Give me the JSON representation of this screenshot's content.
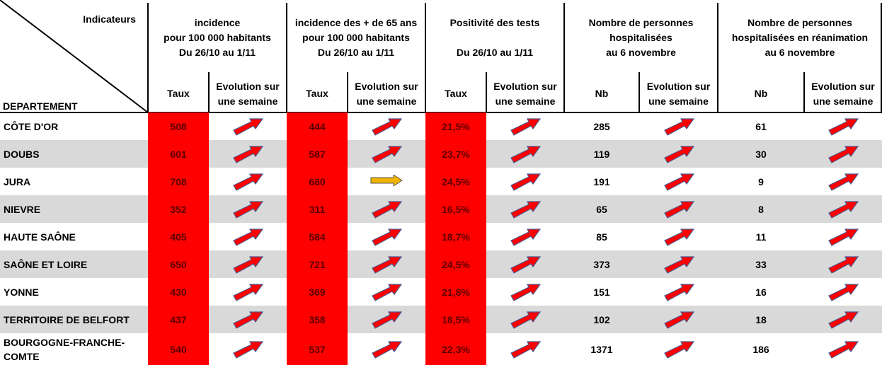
{
  "header": {
    "corner_top": "Indicateurs",
    "corner_bottom": "DEPARTEMENT",
    "groups": [
      {
        "lines": [
          "incidence",
          "pour 100 000 habitants",
          "Du 26/10 au 1/11"
        ],
        "sub1": "Taux",
        "sub2": "Evolution sur une semaine"
      },
      {
        "lines": [
          "incidence des + de 65 ans",
          "pour 100 000 habitants",
          "Du 26/10 au 1/11"
        ],
        "sub1": "Taux",
        "sub2": "Evolution sur une semaine"
      },
      {
        "lines": [
          "Positivité des tests",
          "",
          "Du 26/10 au 1/11"
        ],
        "sub1": "Taux",
        "sub2": "Evolution sur une semaine"
      },
      {
        "lines": [
          "Nombre de personnes",
          "hospitalisées",
          "au 6 novembre"
        ],
        "sub1": "Nb",
        "sub2": "Evolution sur une semaine"
      },
      {
        "lines": [
          "Nombre de personnes",
          "hospitalisées en réanimation",
          "au 6 novembre"
        ],
        "sub1": "Nb",
        "sub2": "Evolution sur une semaine"
      }
    ]
  },
  "rows": [
    {
      "name": "CÔTE D'OR",
      "inc": "508",
      "inc65": "444",
      "pos": "21,5%",
      "hosp": "285",
      "rea": "61"
    },
    {
      "name": "DOUBS",
      "inc": "601",
      "inc65": "587",
      "pos": "23,7%",
      "hosp": "119",
      "rea": "30"
    },
    {
      "name": "JURA",
      "inc": "708",
      "inc65": "680",
      "pos": "24,5%",
      "hosp": "191",
      "rea": "9"
    },
    {
      "name": "NIEVRE",
      "inc": "352",
      "inc65": "311",
      "pos": "16,5%",
      "hosp": "65",
      "rea": "8"
    },
    {
      "name": "HAUTE SAÔNE",
      "inc": "405",
      "inc65": "584",
      "pos": "18,7%",
      "hosp": "85",
      "rea": "11"
    },
    {
      "name": "SAÔNE ET LOIRE",
      "inc": "650",
      "inc65": "721",
      "pos": "24,5%",
      "hosp": "373",
      "rea": "33"
    },
    {
      "name": "YONNE",
      "inc": "430",
      "inc65": "369",
      "pos": "21,8%",
      "hosp": "151",
      "rea": "16"
    },
    {
      "name": "TERRITOIRE DE BELFORT",
      "inc": "437",
      "inc65": "358",
      "pos": "18,5%",
      "hosp": "102",
      "rea": "18"
    },
    {
      "name": "BOURGOGNE-FRANCHE-COMTE",
      "inc": "540",
      "inc65": "537",
      "pos": "22,3%",
      "hosp": "1371",
      "rea": "186"
    }
  ],
  "trends": [
    [
      "up",
      "up",
      "up",
      "up",
      "up"
    ],
    [
      "up",
      "up",
      "up",
      "up",
      "up"
    ],
    [
      "up",
      "flat",
      "up",
      "up",
      "up"
    ],
    [
      "up",
      "up",
      "up",
      "up",
      "up"
    ],
    [
      "up",
      "up",
      "up",
      "up",
      "up"
    ],
    [
      "up",
      "up",
      "up",
      "up",
      "up"
    ],
    [
      "up",
      "up",
      "up",
      "up",
      "up"
    ],
    [
      "up",
      "up",
      "up",
      "up",
      "up"
    ],
    [
      "up",
      "up",
      "up",
      "up",
      "up"
    ]
  ],
  "trend_icons": {
    "up": "arrow-up-right-icon",
    "flat": "arrow-right-icon"
  },
  "colors": {
    "high": "#ff0000",
    "up_arrow": "#ff0000",
    "flat_arrow": "#f0b400",
    "stripe": "#d9d9d9"
  }
}
